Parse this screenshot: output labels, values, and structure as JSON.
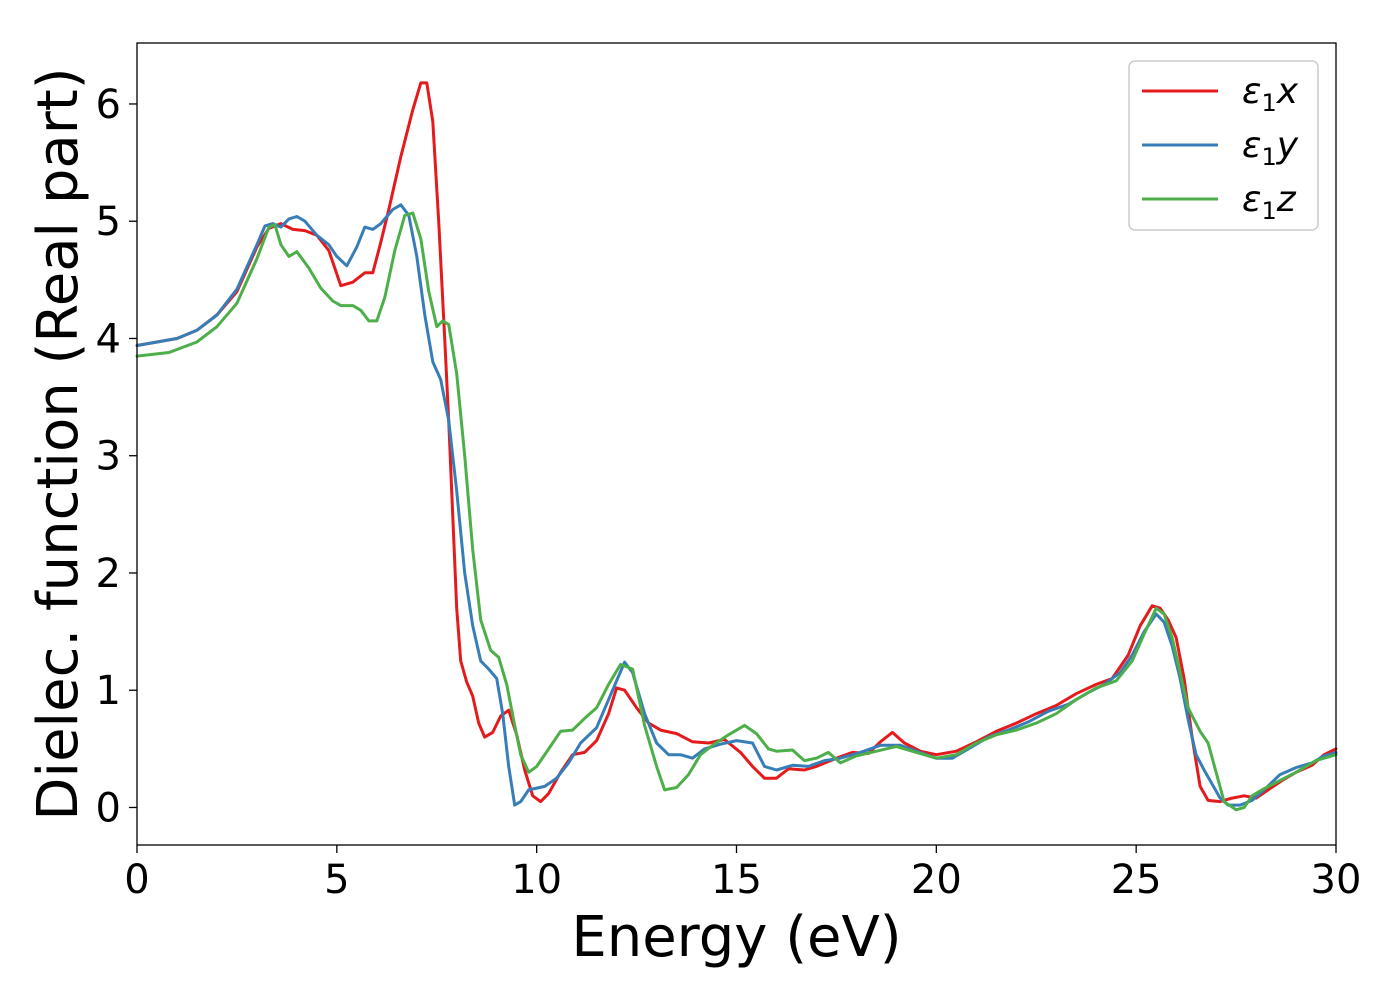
{
  "chart_data": {
    "type": "line",
    "title": "",
    "xlabel": "Energy (eV)",
    "ylabel": "Dielec. function (Real part)",
    "xlim": [
      0,
      30
    ],
    "ylim": [
      -0.32,
      6.52
    ],
    "xticks": [
      0,
      5,
      10,
      15,
      20,
      25,
      30
    ],
    "yticks": [
      0,
      1,
      2,
      3,
      4,
      5,
      6
    ],
    "grid": false,
    "legend_position": "top-right",
    "series": [
      {
        "name": "ε₁x",
        "legend_base": "ε",
        "legend_sub": "1",
        "legend_var": "x",
        "color": "#e41a1c",
        "points": [
          [
            0,
            3.94
          ],
          [
            1,
            4.0
          ],
          [
            1.5,
            4.07
          ],
          [
            2,
            4.2
          ],
          [
            2.5,
            4.4
          ],
          [
            3,
            4.78
          ],
          [
            3.3,
            4.94
          ],
          [
            3.6,
            4.98
          ],
          [
            3.9,
            4.93
          ],
          [
            4.2,
            4.92
          ],
          [
            4.5,
            4.88
          ],
          [
            4.8,
            4.75
          ],
          [
            5.1,
            4.45
          ],
          [
            5.4,
            4.48
          ],
          [
            5.7,
            4.56
          ],
          [
            5.9,
            4.56
          ],
          [
            6.1,
            4.82
          ],
          [
            6.3,
            5.1
          ],
          [
            6.6,
            5.55
          ],
          [
            6.9,
            5.95
          ],
          [
            7.1,
            6.18
          ],
          [
            7.25,
            6.18
          ],
          [
            7.4,
            5.85
          ],
          [
            7.55,
            5.0
          ],
          [
            7.7,
            4.0
          ],
          [
            7.8,
            3.3
          ],
          [
            7.9,
            2.5
          ],
          [
            8.0,
            1.7
          ],
          [
            8.1,
            1.25
          ],
          [
            8.25,
            1.07
          ],
          [
            8.4,
            0.95
          ],
          [
            8.55,
            0.72
          ],
          [
            8.7,
            0.6
          ],
          [
            8.9,
            0.64
          ],
          [
            9.1,
            0.78
          ],
          [
            9.3,
            0.83
          ],
          [
            9.5,
            0.62
          ],
          [
            9.7,
            0.32
          ],
          [
            9.9,
            0.1
          ],
          [
            10.1,
            0.05
          ],
          [
            10.3,
            0.12
          ],
          [
            10.6,
            0.3
          ],
          [
            10.9,
            0.45
          ],
          [
            11.2,
            0.47
          ],
          [
            11.5,
            0.57
          ],
          [
            11.8,
            0.8
          ],
          [
            12.0,
            1.02
          ],
          [
            12.2,
            1.0
          ],
          [
            12.5,
            0.85
          ],
          [
            12.8,
            0.72
          ],
          [
            13.1,
            0.66
          ],
          [
            13.5,
            0.63
          ],
          [
            13.9,
            0.56
          ],
          [
            14.3,
            0.55
          ],
          [
            14.7,
            0.58
          ],
          [
            15.1,
            0.47
          ],
          [
            15.4,
            0.35
          ],
          [
            15.7,
            0.25
          ],
          [
            16.0,
            0.25
          ],
          [
            16.3,
            0.33
          ],
          [
            16.7,
            0.32
          ],
          [
            17.0,
            0.35
          ],
          [
            17.5,
            0.42
          ],
          [
            17.9,
            0.47
          ],
          [
            18.3,
            0.46
          ],
          [
            18.6,
            0.56
          ],
          [
            18.9,
            0.64
          ],
          [
            19.2,
            0.55
          ],
          [
            19.6,
            0.48
          ],
          [
            20.0,
            0.45
          ],
          [
            20.5,
            0.48
          ],
          [
            21.0,
            0.56
          ],
          [
            21.5,
            0.65
          ],
          [
            22.0,
            0.72
          ],
          [
            22.5,
            0.8
          ],
          [
            23.0,
            0.87
          ],
          [
            23.5,
            0.97
          ],
          [
            24.0,
            1.05
          ],
          [
            24.4,
            1.1
          ],
          [
            24.8,
            1.3
          ],
          [
            25.1,
            1.55
          ],
          [
            25.4,
            1.72
          ],
          [
            25.6,
            1.7
          ],
          [
            25.8,
            1.6
          ],
          [
            26.0,
            1.45
          ],
          [
            26.2,
            1.1
          ],
          [
            26.4,
            0.6
          ],
          [
            26.6,
            0.18
          ],
          [
            26.8,
            0.06
          ],
          [
            27.1,
            0.05
          ],
          [
            27.4,
            0.08
          ],
          [
            27.7,
            0.1
          ],
          [
            28.0,
            0.08
          ],
          [
            28.3,
            0.15
          ],
          [
            28.7,
            0.24
          ],
          [
            29.0,
            0.3
          ],
          [
            29.4,
            0.36
          ],
          [
            29.7,
            0.45
          ],
          [
            30.0,
            0.5
          ]
        ]
      },
      {
        "name": "ε₁y",
        "legend_base": "ε",
        "legend_sub": "1",
        "legend_var": "y",
        "color": "#377eb8",
        "points": [
          [
            0,
            3.94
          ],
          [
            1,
            4.0
          ],
          [
            1.5,
            4.07
          ],
          [
            2,
            4.2
          ],
          [
            2.5,
            4.42
          ],
          [
            3,
            4.8
          ],
          [
            3.2,
            4.96
          ],
          [
            3.4,
            4.98
          ],
          [
            3.6,
            4.95
          ],
          [
            3.8,
            5.02
          ],
          [
            4.0,
            5.04
          ],
          [
            4.2,
            5.0
          ],
          [
            4.5,
            4.88
          ],
          [
            4.8,
            4.8
          ],
          [
            5.0,
            4.7
          ],
          [
            5.25,
            4.62
          ],
          [
            5.5,
            4.78
          ],
          [
            5.7,
            4.95
          ],
          [
            5.9,
            4.93
          ],
          [
            6.1,
            4.98
          ],
          [
            6.4,
            5.1
          ],
          [
            6.6,
            5.14
          ],
          [
            6.8,
            5.05
          ],
          [
            7.0,
            4.7
          ],
          [
            7.2,
            4.2
          ],
          [
            7.4,
            3.8
          ],
          [
            7.6,
            3.65
          ],
          [
            7.8,
            3.3
          ],
          [
            8.0,
            2.7
          ],
          [
            8.2,
            2.0
          ],
          [
            8.4,
            1.55
          ],
          [
            8.6,
            1.25
          ],
          [
            8.8,
            1.18
          ],
          [
            9.0,
            1.1
          ],
          [
            9.15,
            0.8
          ],
          [
            9.3,
            0.35
          ],
          [
            9.45,
            0.02
          ],
          [
            9.6,
            0.05
          ],
          [
            9.8,
            0.15
          ],
          [
            10.2,
            0.18
          ],
          [
            10.5,
            0.25
          ],
          [
            10.8,
            0.38
          ],
          [
            11.1,
            0.55
          ],
          [
            11.5,
            0.68
          ],
          [
            11.9,
            1.0
          ],
          [
            12.2,
            1.24
          ],
          [
            12.4,
            1.15
          ],
          [
            12.7,
            0.8
          ],
          [
            13.0,
            0.55
          ],
          [
            13.3,
            0.45
          ],
          [
            13.6,
            0.45
          ],
          [
            13.9,
            0.42
          ],
          [
            14.2,
            0.5
          ],
          [
            14.6,
            0.54
          ],
          [
            15.0,
            0.57
          ],
          [
            15.4,
            0.55
          ],
          [
            15.7,
            0.35
          ],
          [
            16.0,
            0.32
          ],
          [
            16.4,
            0.36
          ],
          [
            16.8,
            0.35
          ],
          [
            17.2,
            0.4
          ],
          [
            17.6,
            0.42
          ],
          [
            18.1,
            0.47
          ],
          [
            18.6,
            0.53
          ],
          [
            19.1,
            0.53
          ],
          [
            19.5,
            0.48
          ],
          [
            20.0,
            0.42
          ],
          [
            20.4,
            0.42
          ],
          [
            20.8,
            0.5
          ],
          [
            21.3,
            0.6
          ],
          [
            21.8,
            0.66
          ],
          [
            22.3,
            0.73
          ],
          [
            22.8,
            0.82
          ],
          [
            23.3,
            0.88
          ],
          [
            23.8,
            0.98
          ],
          [
            24.2,
            1.05
          ],
          [
            24.6,
            1.15
          ],
          [
            24.9,
            1.3
          ],
          [
            25.2,
            1.5
          ],
          [
            25.5,
            1.65
          ],
          [
            25.7,
            1.58
          ],
          [
            25.9,
            1.38
          ],
          [
            26.1,
            1.1
          ],
          [
            26.3,
            0.75
          ],
          [
            26.5,
            0.45
          ],
          [
            26.7,
            0.32
          ],
          [
            26.9,
            0.2
          ],
          [
            27.1,
            0.08
          ],
          [
            27.3,
            0.02
          ],
          [
            27.6,
            0.02
          ],
          [
            27.9,
            0.06
          ],
          [
            28.2,
            0.15
          ],
          [
            28.6,
            0.28
          ],
          [
            29.0,
            0.34
          ],
          [
            29.4,
            0.38
          ],
          [
            29.7,
            0.44
          ],
          [
            30.0,
            0.47
          ]
        ]
      },
      {
        "name": "ε₁z",
        "legend_base": "ε",
        "legend_sub": "1",
        "legend_var": "z",
        "color": "#4daf4a",
        "points": [
          [
            0,
            3.85
          ],
          [
            0.8,
            3.88
          ],
          [
            1.5,
            3.97
          ],
          [
            2,
            4.1
          ],
          [
            2.5,
            4.3
          ],
          [
            3,
            4.68
          ],
          [
            3.3,
            4.95
          ],
          [
            3.45,
            4.97
          ],
          [
            3.6,
            4.8
          ],
          [
            3.8,
            4.7
          ],
          [
            4.0,
            4.74
          ],
          [
            4.3,
            4.6
          ],
          [
            4.6,
            4.43
          ],
          [
            4.9,
            4.32
          ],
          [
            5.1,
            4.28
          ],
          [
            5.4,
            4.28
          ],
          [
            5.6,
            4.24
          ],
          [
            5.8,
            4.15
          ],
          [
            6.0,
            4.15
          ],
          [
            6.2,
            4.35
          ],
          [
            6.45,
            4.75
          ],
          [
            6.7,
            5.05
          ],
          [
            6.9,
            5.07
          ],
          [
            7.1,
            4.85
          ],
          [
            7.3,
            4.4
          ],
          [
            7.5,
            4.1
          ],
          [
            7.65,
            4.15
          ],
          [
            7.8,
            4.12
          ],
          [
            8.0,
            3.7
          ],
          [
            8.2,
            3.0
          ],
          [
            8.4,
            2.2
          ],
          [
            8.6,
            1.6
          ],
          [
            8.85,
            1.34
          ],
          [
            9.05,
            1.28
          ],
          [
            9.25,
            1.05
          ],
          [
            9.45,
            0.7
          ],
          [
            9.6,
            0.45
          ],
          [
            9.8,
            0.3
          ],
          [
            10.0,
            0.35
          ],
          [
            10.3,
            0.5
          ],
          [
            10.6,
            0.65
          ],
          [
            10.9,
            0.66
          ],
          [
            11.2,
            0.76
          ],
          [
            11.5,
            0.85
          ],
          [
            11.8,
            1.05
          ],
          [
            12.1,
            1.22
          ],
          [
            12.4,
            1.18
          ],
          [
            12.7,
            0.7
          ],
          [
            13.0,
            0.35
          ],
          [
            13.2,
            0.15
          ],
          [
            13.5,
            0.17
          ],
          [
            13.8,
            0.28
          ],
          [
            14.1,
            0.45
          ],
          [
            14.4,
            0.53
          ],
          [
            14.8,
            0.62
          ],
          [
            15.2,
            0.7
          ],
          [
            15.5,
            0.63
          ],
          [
            15.8,
            0.5
          ],
          [
            16.0,
            0.48
          ],
          [
            16.4,
            0.49
          ],
          [
            16.7,
            0.4
          ],
          [
            17.0,
            0.42
          ],
          [
            17.3,
            0.47
          ],
          [
            17.6,
            0.38
          ],
          [
            18.0,
            0.44
          ],
          [
            18.5,
            0.48
          ],
          [
            19.0,
            0.52
          ],
          [
            19.5,
            0.47
          ],
          [
            20.0,
            0.42
          ],
          [
            20.5,
            0.45
          ],
          [
            21.0,
            0.55
          ],
          [
            21.5,
            0.62
          ],
          [
            22.0,
            0.66
          ],
          [
            22.5,
            0.72
          ],
          [
            23.0,
            0.8
          ],
          [
            23.5,
            0.92
          ],
          [
            24.0,
            1.02
          ],
          [
            24.5,
            1.08
          ],
          [
            24.9,
            1.25
          ],
          [
            25.2,
            1.48
          ],
          [
            25.5,
            1.7
          ],
          [
            25.7,
            1.65
          ],
          [
            25.9,
            1.45
          ],
          [
            26.1,
            1.15
          ],
          [
            26.3,
            0.85
          ],
          [
            26.6,
            0.65
          ],
          [
            26.8,
            0.55
          ],
          [
            27.0,
            0.3
          ],
          [
            27.2,
            0.05
          ],
          [
            27.5,
            -0.02
          ],
          [
            27.7,
            0.0
          ],
          [
            27.9,
            0.1
          ],
          [
            28.2,
            0.16
          ],
          [
            28.6,
            0.23
          ],
          [
            29.0,
            0.3
          ],
          [
            29.5,
            0.4
          ],
          [
            30.0,
            0.45
          ]
        ]
      }
    ]
  }
}
